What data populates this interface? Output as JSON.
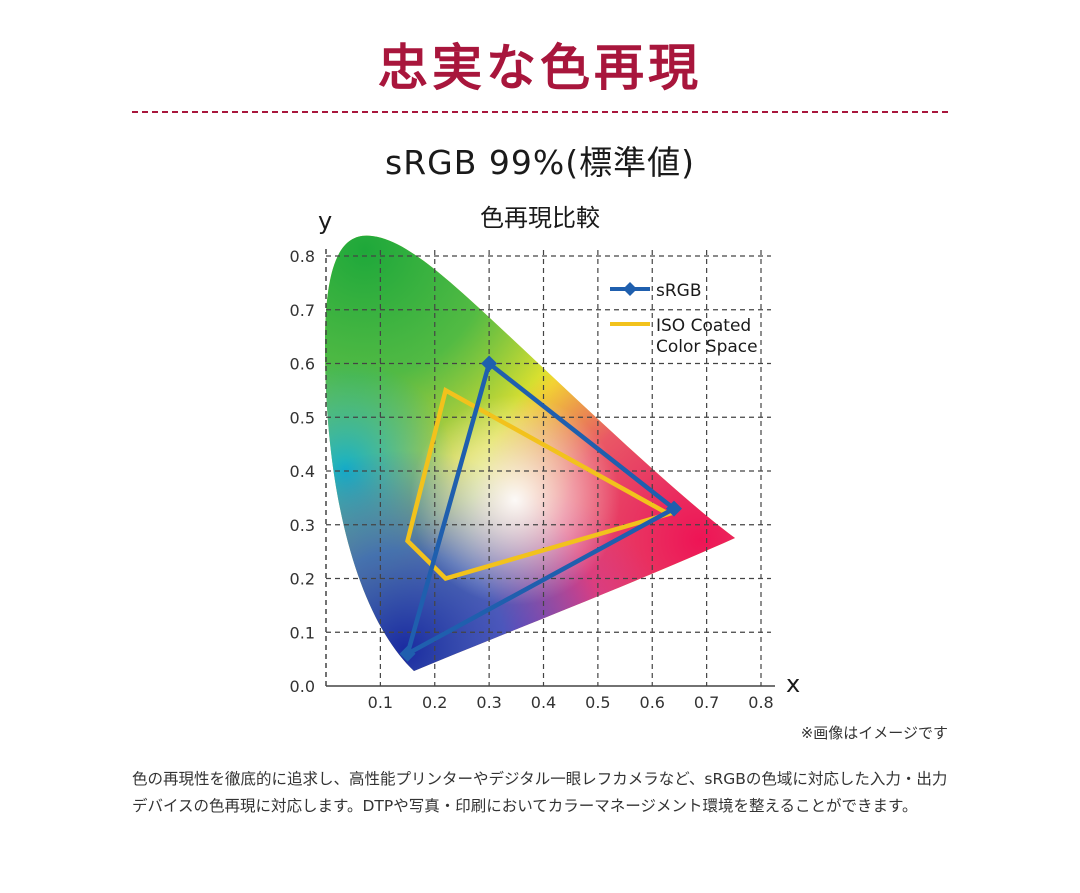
{
  "heading": "忠実な色再現",
  "subtitle": "sRGB 99%(標準値)",
  "colors": {
    "heading": "#a8163c",
    "srgb": "#1f5fae",
    "iso": "#f2c21c"
  },
  "chart_data": {
    "type": "line",
    "title": "色再現比較",
    "xlabel": "x",
    "ylabel": "y",
    "xlim": [
      0,
      0.8
    ],
    "ylim": [
      0,
      0.8
    ],
    "x_ticks": [
      "0.1",
      "0.2",
      "0.3",
      "0.4",
      "0.5",
      "0.6",
      "0.7",
      "0.8"
    ],
    "y_ticks": [
      "0.0",
      "0.1",
      "0.2",
      "0.3",
      "0.4",
      "0.5",
      "0.6",
      "0.7",
      "0.8"
    ],
    "grid": true,
    "legend_position": "top-right",
    "background": "CIE 1931 chromaticity diagram",
    "series": [
      {
        "name": "sRGB",
        "color": "#1f5fae",
        "marker": "diamond",
        "points": [
          [
            0.3,
            0.6
          ],
          [
            0.64,
            0.33
          ],
          [
            0.15,
            0.06
          ]
        ]
      },
      {
        "name": "ISO Coated Color Space",
        "color": "#f2c21c",
        "marker": "none",
        "points": [
          [
            0.22,
            0.55
          ],
          [
            0.63,
            0.32
          ],
          [
            0.22,
            0.2
          ],
          [
            0.15,
            0.27
          ]
        ]
      }
    ]
  },
  "note": "※画像はイメージです",
  "description": "色の再現性を徹底的に追求し、高性能プリンターやデジタル一眼レフカメラなど、sRGBの色域に対応した入力・出力デバイスの色再現に対応します。DTPや写真・印刷においてカラーマネージメント環境を整えることができます。"
}
